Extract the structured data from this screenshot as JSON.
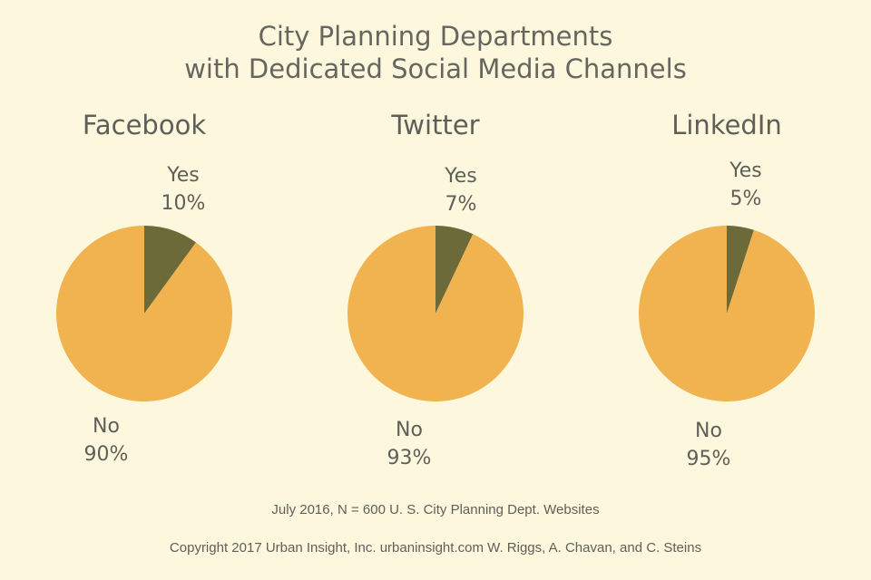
{
  "title_line1": "City Planning Departments",
  "title_line2": "with Dedicated Social Media Channels",
  "colors": {
    "yes": "#6b6a38",
    "no": "#f0b350",
    "background": "#fdf8dd",
    "text": "#5f5f59"
  },
  "chart_data": [
    {
      "type": "pie",
      "title": "Facebook",
      "labels": [
        "Yes",
        "No"
      ],
      "values": [
        10,
        90
      ],
      "value_labels": [
        "10%",
        "90%"
      ]
    },
    {
      "type": "pie",
      "title": "Twitter",
      "labels": [
        "Yes",
        "No"
      ],
      "values": [
        7,
        93
      ],
      "value_labels": [
        "7%",
        "93%"
      ]
    },
    {
      "type": "pie",
      "title": "LinkedIn",
      "labels": [
        "Yes",
        "No"
      ],
      "values": [
        5,
        95
      ],
      "value_labels": [
        "5%",
        "95%"
      ]
    }
  ],
  "note": "July 2016, N = 600 U. S. City Planning Dept. Websites",
  "copyright": "Copyright 2017 Urban Insight, Inc. urbaninsight.com  W. Riggs, A. Chavan, and C. Steins"
}
